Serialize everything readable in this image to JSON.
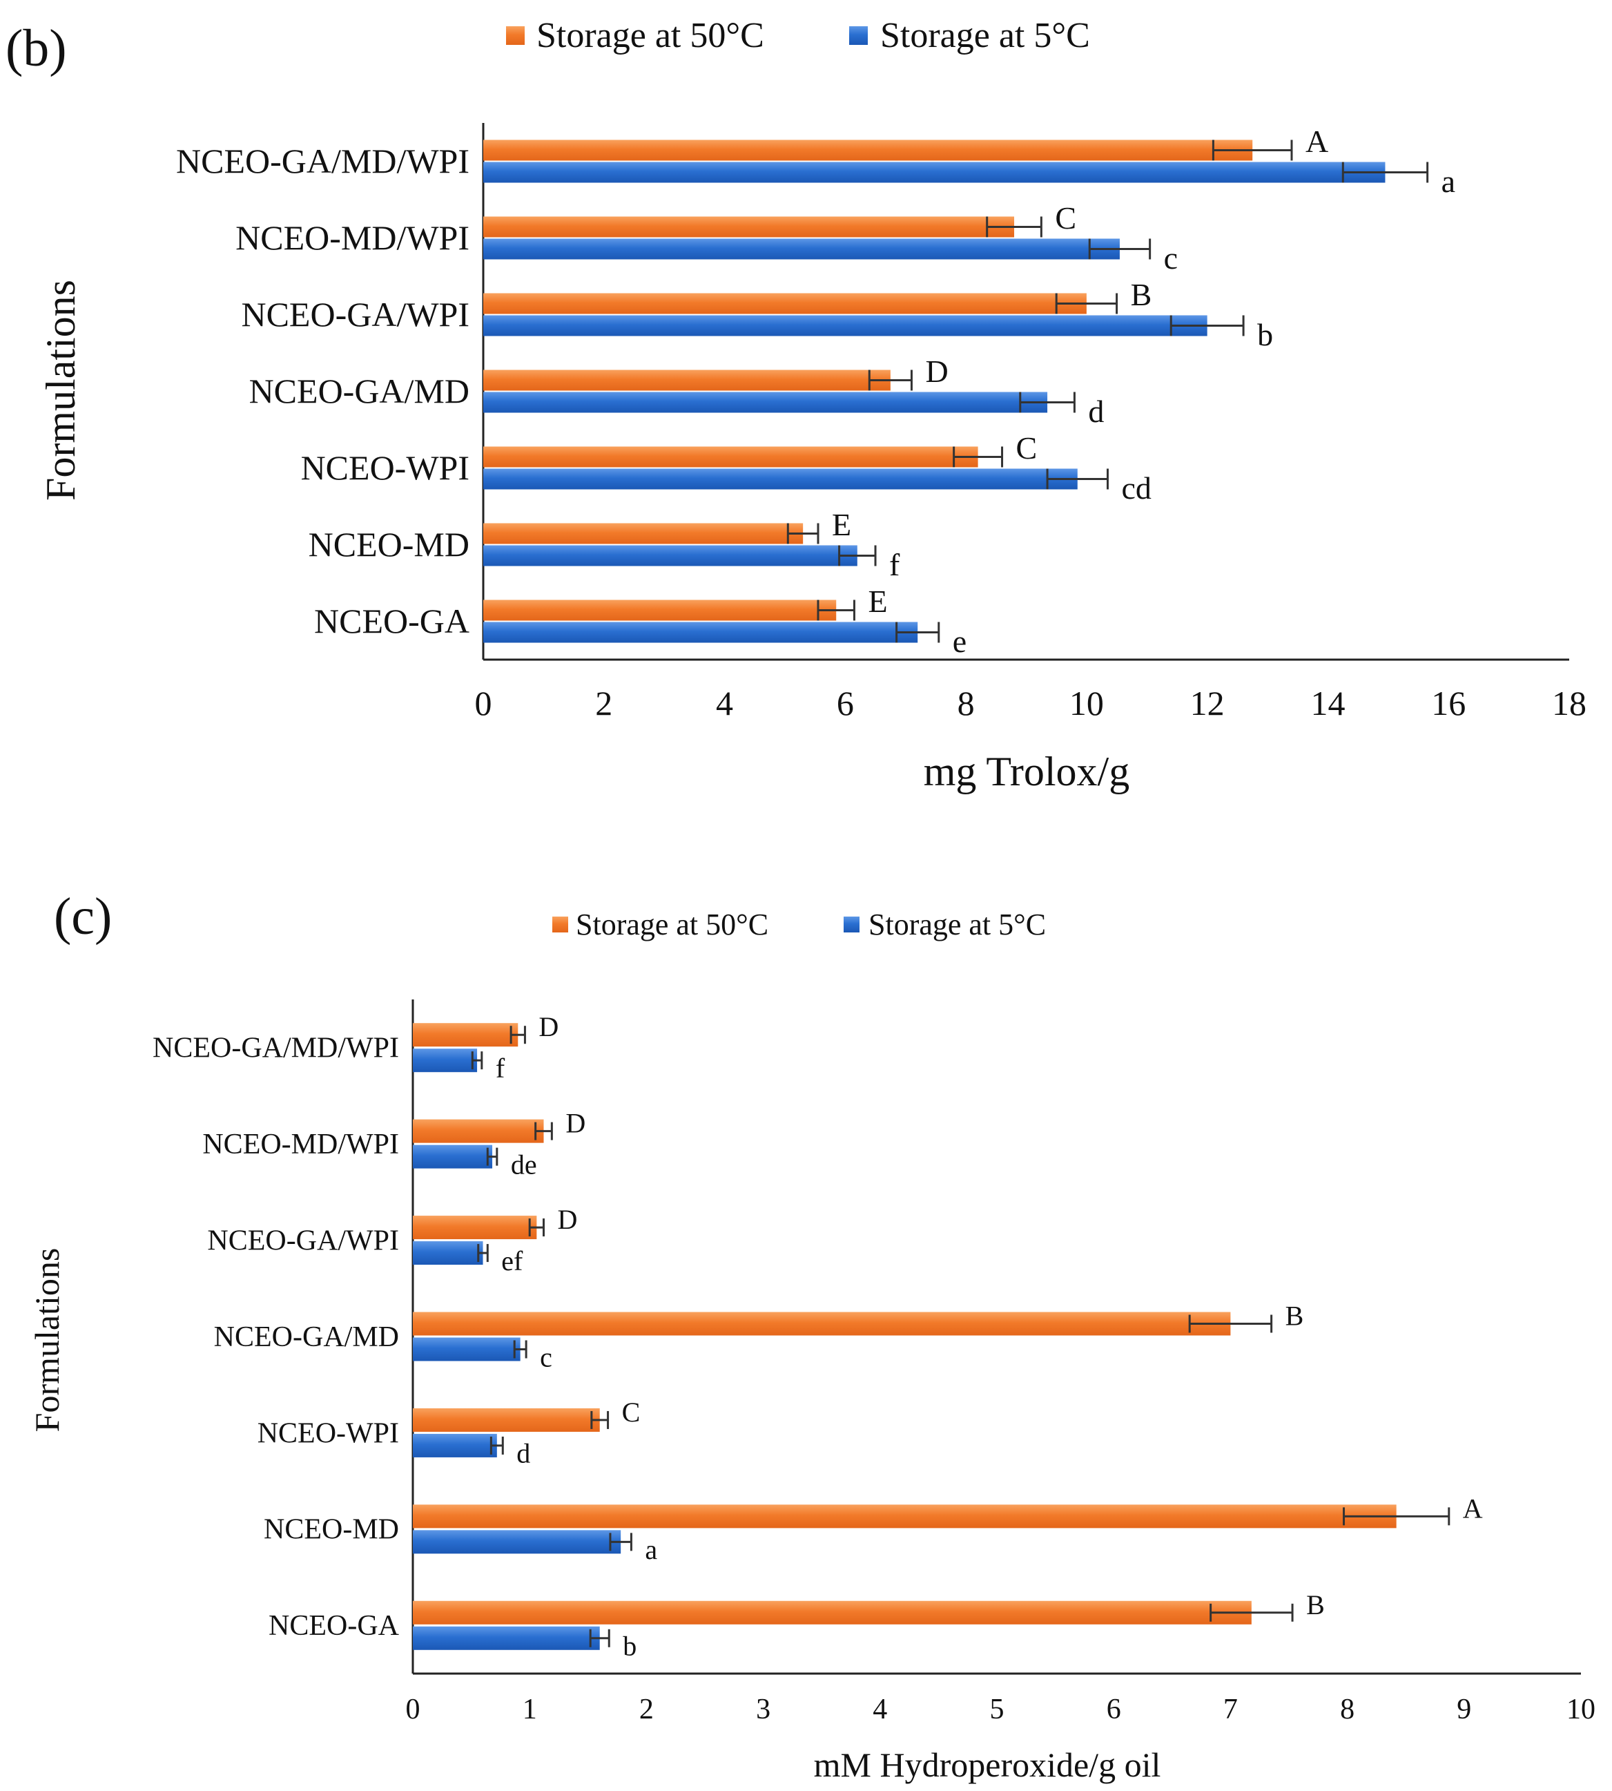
{
  "chart_data": [
    {
      "panel_label": "(b)",
      "type": "bar",
      "orientation": "horizontal",
      "title": "",
      "xlabel": "mg Trolox/g",
      "ylabel": "Formulations",
      "xlim": [
        0,
        18
      ],
      "xticks": [
        "0",
        "2",
        "4",
        "6",
        "8",
        "10",
        "12",
        "14",
        "16",
        "18"
      ],
      "xtick_values": [
        0,
        2,
        4,
        6,
        8,
        10,
        12,
        14,
        16,
        18
      ],
      "categories": [
        "NCEO-GA/MD/WPI",
        "NCEO-MD/WPI",
        "NCEO-GA/WPI",
        "NCEO-GA/MD",
        "NCEO-WPI",
        "NCEO-MD",
        "NCEO-GA"
      ],
      "legend_position": "top",
      "grid": false,
      "series": [
        {
          "name": "Storage at 50°C",
          "color": "#f27a2a",
          "values": [
            12.75,
            8.8,
            10.0,
            6.75,
            8.2,
            5.3,
            5.85
          ],
          "errors": [
            0.65,
            0.45,
            0.5,
            0.35,
            0.4,
            0.25,
            0.3
          ],
          "labels": [
            "A",
            "C",
            "B",
            "D",
            "C",
            "E",
            "E"
          ]
        },
        {
          "name": "Storage at 5°C",
          "color": "#2a6fd1",
          "values": [
            14.95,
            10.55,
            12.0,
            9.35,
            9.85,
            6.2,
            7.2
          ],
          "errors": [
            0.7,
            0.5,
            0.6,
            0.45,
            0.5,
            0.3,
            0.35
          ],
          "labels": [
            "a",
            "c",
            "b",
            "d",
            "cd",
            "f",
            "e"
          ]
        }
      ]
    },
    {
      "panel_label": "(c)",
      "type": "bar",
      "orientation": "horizontal",
      "title": "",
      "xlabel": "mM Hydroperoxide/g oil",
      "ylabel": "Formulations",
      "xlim": [
        0,
        10
      ],
      "xticks": [
        "0",
        "1",
        "2",
        "3",
        "4",
        "5",
        "6",
        "7",
        "8",
        "9",
        "10"
      ],
      "xtick_values": [
        0,
        1,
        2,
        3,
        4,
        5,
        6,
        7,
        8,
        9,
        10
      ],
      "categories": [
        "NCEO-GA/MD/WPI",
        "NCEO-MD/WPI",
        "NCEO-GA/WPI",
        "NCEO-GA/MD",
        "NCEO-WPI",
        "NCEO-MD",
        "NCEO-GA"
      ],
      "legend_position": "top",
      "grid": false,
      "series": [
        {
          "name": "Storage at 50°C",
          "color": "#f27a2a",
          "values": [
            0.9,
            1.12,
            1.06,
            7.0,
            1.6,
            8.42,
            7.18
          ],
          "errors": [
            0.06,
            0.07,
            0.06,
            0.35,
            0.07,
            0.45,
            0.35
          ],
          "labels": [
            "D",
            "D",
            "D",
            "B",
            "C",
            "A",
            "B"
          ]
        },
        {
          "name": "Storage at 5°C",
          "color": "#2a6fd1",
          "values": [
            0.55,
            0.68,
            0.6,
            0.92,
            0.72,
            1.78,
            1.6
          ],
          "errors": [
            0.04,
            0.04,
            0.04,
            0.05,
            0.05,
            0.09,
            0.08
          ],
          "labels": [
            "f",
            "de",
            "ef",
            "c",
            "d",
            "a",
            "b"
          ]
        }
      ]
    }
  ]
}
